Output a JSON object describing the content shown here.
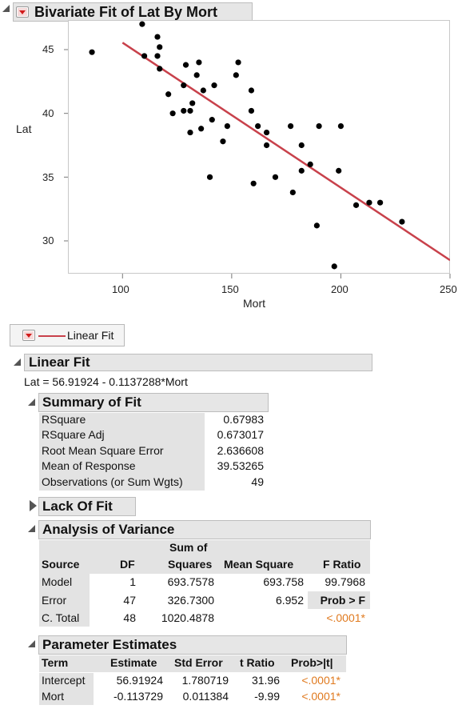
{
  "bivariate": {
    "title": "Bivariate Fit of Lat By Mort",
    "ylabel": "Lat",
    "xlabel": "Mort",
    "yticks": [
      "45",
      "40",
      "35",
      "30"
    ],
    "xticks": [
      "100",
      "150",
      "200",
      "250"
    ]
  },
  "chart_data": {
    "type": "scatter",
    "xlabel": "Mort",
    "ylabel": "Lat",
    "xlim": [
      75,
      250
    ],
    "ylim": [
      27.5,
      47.5
    ],
    "points": [
      [
        86,
        44.8
      ],
      [
        109,
        47.0
      ],
      [
        110,
        44.5
      ],
      [
        116,
        46.0
      ],
      [
        116,
        44.5
      ],
      [
        117,
        45.2
      ],
      [
        117,
        43.5
      ],
      [
        121,
        41.5
      ],
      [
        123,
        40.0
      ],
      [
        128,
        42.2
      ],
      [
        128,
        40.2
      ],
      [
        129,
        43.8
      ],
      [
        131,
        40.2
      ],
      [
        131,
        38.5
      ],
      [
        132,
        40.8
      ],
      [
        134,
        43.0
      ],
      [
        135,
        44.0
      ],
      [
        136,
        38.8
      ],
      [
        137,
        41.8
      ],
      [
        140,
        35.0
      ],
      [
        141,
        39.5
      ],
      [
        142,
        42.2
      ],
      [
        146,
        37.8
      ],
      [
        148,
        39.0
      ],
      [
        152,
        43.0
      ],
      [
        153,
        44.0
      ],
      [
        159,
        40.2
      ],
      [
        159,
        41.8
      ],
      [
        160,
        34.5
      ],
      [
        162,
        39.0
      ],
      [
        166,
        37.5
      ],
      [
        166,
        38.5
      ],
      [
        170,
        35.0
      ],
      [
        177,
        39.0
      ],
      [
        178,
        33.8
      ],
      [
        182,
        37.5
      ],
      [
        182,
        35.5
      ],
      [
        186,
        36.0
      ],
      [
        189,
        31.2
      ],
      [
        190,
        39.0
      ],
      [
        197,
        28.0
      ],
      [
        199,
        35.5
      ],
      [
        200,
        39.0
      ],
      [
        207,
        32.8
      ],
      [
        213,
        33.0
      ],
      [
        218,
        33.0
      ],
      [
        228,
        31.5
      ]
    ],
    "fit_line": {
      "intercept": 56.91924,
      "slope": -0.1137288,
      "color": "#c8414b"
    },
    "point_color": "#000000"
  },
  "legend": {
    "label": "Linear Fit"
  },
  "linear_fit": {
    "title": "Linear Fit",
    "equation": "Lat = 56.91924 - 0.1137288*Mort"
  },
  "summary_of_fit": {
    "title": "Summary of Fit",
    "rows": [
      {
        "label": "RSquare",
        "value": "0.67983"
      },
      {
        "label": "RSquare Adj",
        "value": "0.673017"
      },
      {
        "label": "Root Mean Square Error",
        "value": "2.636608"
      },
      {
        "label": "Mean of Response",
        "value": "39.53265"
      },
      {
        "label": "Observations (or Sum Wgts)",
        "value": "49"
      }
    ]
  },
  "lack_of_fit": {
    "title": "Lack Of Fit"
  },
  "anova": {
    "title": "Analysis of Variance",
    "headers": {
      "source": "Source",
      "df": "DF",
      "ss_top": "Sum of",
      "ss": "Squares",
      "ms": "Mean Square",
      "f": "F Ratio"
    },
    "rows": [
      {
        "source": "Model",
        "df": "1",
        "ss": "693.7578",
        "ms": "693.758",
        "f": "99.7968"
      },
      {
        "source": "Error",
        "df": "47",
        "ss": "326.7300",
        "ms": "6.952",
        "f": "Prob > F"
      },
      {
        "source": "C. Total",
        "df": "48",
        "ss": "1020.4878",
        "ms": "",
        "f": "<.0001*"
      }
    ]
  },
  "param_estimates": {
    "title": "Parameter Estimates",
    "headers": {
      "term": "Term",
      "est": "Estimate",
      "se": "Std Error",
      "t": "t Ratio",
      "p": "Prob>|t|"
    },
    "rows": [
      {
        "term": "Intercept",
        "est": "56.91924",
        "se": "1.780719",
        "t": "31.96",
        "p": "<.0001*"
      },
      {
        "term": "Mort",
        "est": "-0.113729",
        "se": "0.011384",
        "t": "-9.99",
        "p": "<.0001*"
      }
    ]
  }
}
